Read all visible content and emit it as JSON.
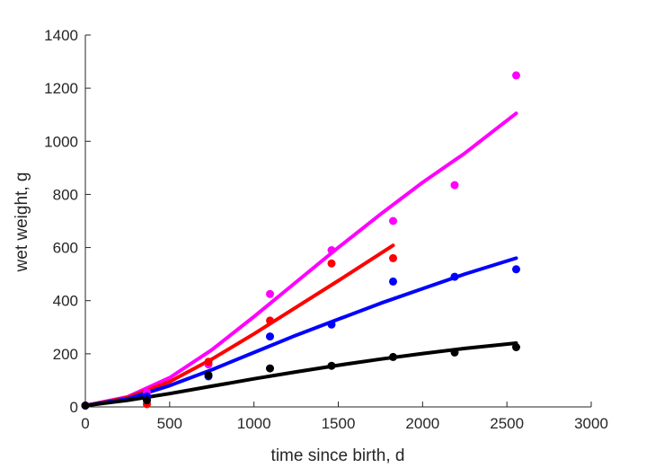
{
  "chart_data": {
    "type": "scatter",
    "title": "",
    "xlabel": "time since birth, d",
    "ylabel": "wet weight, g",
    "xlim": [
      0,
      3000
    ],
    "ylim": [
      0,
      1400
    ],
    "xticks": [
      0,
      500,
      1000,
      1500,
      2000,
      2500,
      3000
    ],
    "yticks": [
      0,
      200,
      400,
      600,
      800,
      1000,
      1200,
      1400
    ],
    "grid": false,
    "legend": "none",
    "series": [
      {
        "color": "#ff00ff",
        "points": {
          "x": [
            0,
            365,
            730,
            1095,
            1460,
            1825,
            2190,
            2555
          ],
          "y": [
            5,
            55,
            160,
            425,
            590,
            700,
            835,
            1248
          ]
        },
        "fit": {
          "x": [
            0,
            250,
            500,
            750,
            1000,
            1250,
            1500,
            1750,
            2000,
            2250,
            2555
          ],
          "y": [
            5,
            38,
            110,
            215,
            340,
            470,
            600,
            725,
            845,
            955,
            1105
          ]
        }
      },
      {
        "color": "#ff0000",
        "points": {
          "x": [
            0,
            365,
            730,
            1095,
            1460,
            1825
          ],
          "y": [
            5,
            10,
            170,
            325,
            540,
            560
          ]
        },
        "fit": {
          "x": [
            0,
            250,
            500,
            750,
            1000,
            1250,
            1500,
            1825
          ],
          "y": [
            5,
            35,
            95,
            180,
            275,
            375,
            475,
            608
          ]
        }
      },
      {
        "color": "#0000ff",
        "points": {
          "x": [
            0,
            365,
            730,
            1095,
            1460,
            1825,
            2190,
            2555
          ],
          "y": [
            5,
            40,
            115,
            265,
            310,
            472,
            490,
            518
          ]
        },
        "fit": {
          "x": [
            0,
            250,
            500,
            750,
            1000,
            1250,
            1500,
            1750,
            2000,
            2250,
            2555
          ],
          "y": [
            5,
            30,
            80,
            140,
            205,
            270,
            330,
            390,
            445,
            500,
            560
          ]
        }
      },
      {
        "color": "#000000",
        "points": {
          "x": [
            0,
            365,
            730,
            1095,
            1460,
            1825,
            2190,
            2555
          ],
          "y": [
            5,
            25,
            120,
            145,
            155,
            188,
            205,
            225
          ]
        },
        "fit": {
          "x": [
            0,
            250,
            500,
            750,
            1000,
            1250,
            1500,
            1750,
            2000,
            2250,
            2555
          ],
          "y": [
            5,
            25,
            50,
            78,
            106,
            132,
            157,
            180,
            201,
            220,
            240
          ]
        }
      }
    ]
  }
}
